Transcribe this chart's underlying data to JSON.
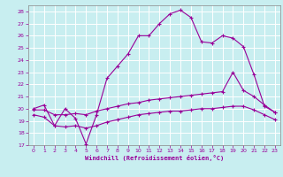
{
  "xlabel": "Windchill (Refroidissement éolien,°C)",
  "bg_color": "#c8eef0",
  "grid_color": "#ffffff",
  "line_color": "#990099",
  "xlim": [
    -0.5,
    23.5
  ],
  "ylim": [
    17,
    28.5
  ],
  "xticks": [
    0,
    1,
    2,
    3,
    4,
    5,
    6,
    7,
    8,
    9,
    10,
    11,
    12,
    13,
    14,
    15,
    16,
    17,
    18,
    19,
    20,
    21,
    22,
    23
  ],
  "yticks": [
    17,
    18,
    19,
    20,
    21,
    22,
    23,
    24,
    25,
    26,
    27,
    28
  ],
  "line1_x": [
    0,
    1,
    2,
    3,
    4,
    5,
    6,
    7,
    8,
    9,
    10,
    11,
    12,
    13,
    14,
    15,
    16,
    17,
    18,
    19,
    20,
    21,
    22,
    23
  ],
  "line1_y": [
    20.0,
    20.3,
    18.6,
    20.0,
    19.2,
    17.1,
    19.5,
    22.5,
    23.5,
    24.5,
    26.0,
    26.0,
    27.0,
    27.8,
    28.1,
    27.5,
    25.5,
    25.4,
    26.0,
    25.8,
    25.1,
    22.8,
    20.2,
    19.7
  ],
  "line2_x": [
    0,
    1,
    2,
    3,
    4,
    5,
    6,
    7,
    8,
    9,
    10,
    11,
    12,
    13,
    14,
    15,
    16,
    17,
    18,
    19,
    20,
    21,
    22,
    23
  ],
  "line2_y": [
    19.9,
    19.9,
    19.5,
    19.5,
    19.6,
    19.5,
    19.8,
    20.0,
    20.2,
    20.4,
    20.5,
    20.7,
    20.8,
    20.9,
    21.0,
    21.1,
    21.2,
    21.3,
    21.4,
    23.0,
    21.5,
    21.0,
    20.3,
    19.7
  ],
  "line3_x": [
    0,
    1,
    2,
    3,
    4,
    5,
    6,
    7,
    8,
    9,
    10,
    11,
    12,
    13,
    14,
    15,
    16,
    17,
    18,
    19,
    20,
    21,
    22,
    23
  ],
  "line3_y": [
    19.5,
    19.3,
    18.6,
    18.5,
    18.6,
    18.4,
    18.6,
    18.9,
    19.1,
    19.3,
    19.5,
    19.6,
    19.7,
    19.8,
    19.8,
    19.9,
    20.0,
    20.0,
    20.1,
    20.2,
    20.2,
    19.9,
    19.5,
    19.1
  ]
}
